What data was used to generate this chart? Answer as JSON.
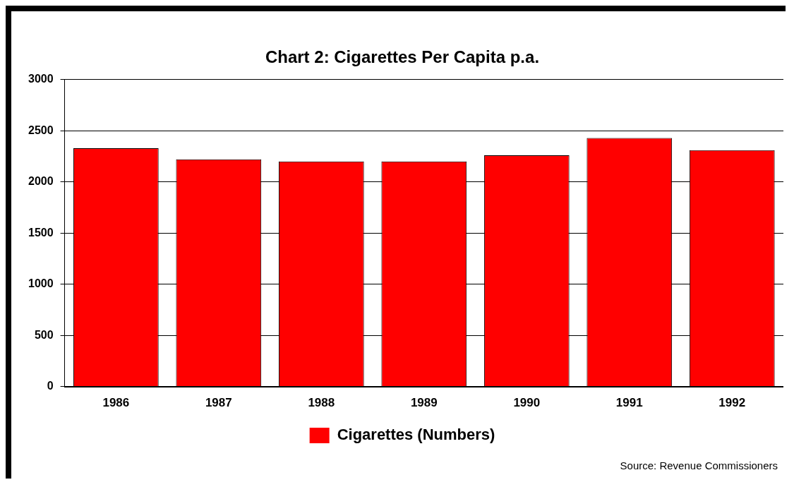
{
  "chart_data": {
    "type": "bar",
    "title": "Chart 2: Cigarettes Per Capita p.a.",
    "categories": [
      "1986",
      "1987",
      "1988",
      "1989",
      "1990",
      "1991",
      "1992"
    ],
    "series": [
      {
        "name": "Cigarettes (Numbers)",
        "color": "#ff0000",
        "values": [
          2330,
          2220,
          2200,
          2200,
          2260,
          2430,
          2310
        ]
      }
    ],
    "ylim": [
      0,
      3000
    ],
    "yticks": [
      0,
      500,
      1000,
      1500,
      2000,
      2500,
      3000
    ],
    "grid": "y",
    "legend": "bottom",
    "annotations": [
      "Source: Revenue Commissioners"
    ]
  }
}
